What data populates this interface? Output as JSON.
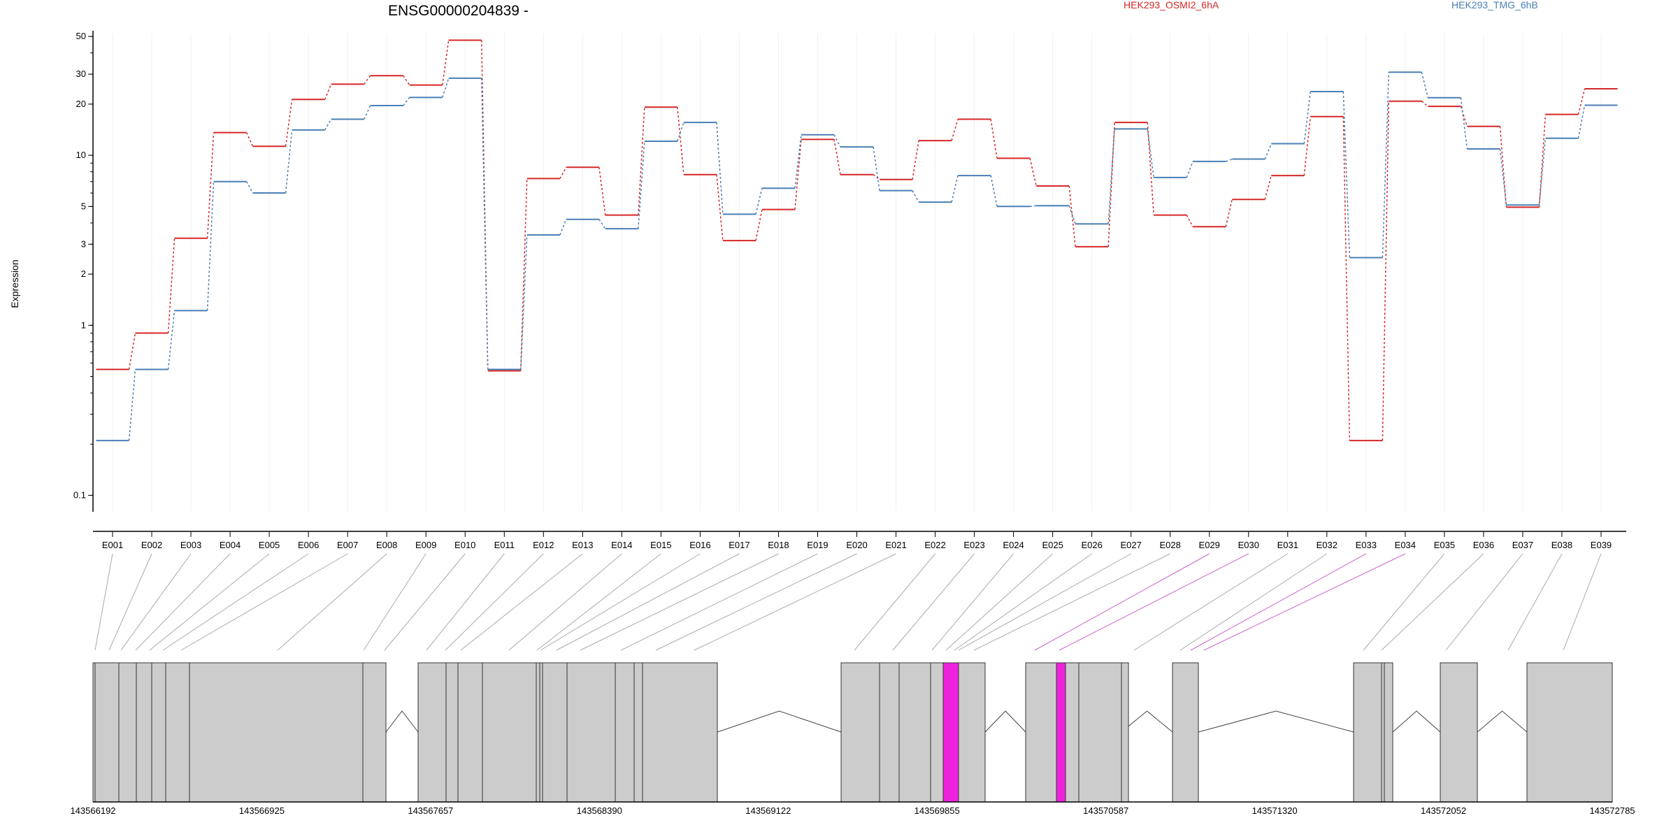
{
  "chart_data": {
    "type": "line",
    "title": "ENSG00000204839 -",
    "ylabel": "Expression",
    "yscale": "log",
    "ylim": [
      0.08,
      52
    ],
    "yticks": [
      0.1,
      1,
      2,
      3,
      5,
      10,
      20,
      30,
      50
    ],
    "ytick_labels": [
      "0.1",
      "1",
      "2",
      "3",
      "5",
      "10",
      "20",
      "30",
      "50"
    ],
    "grid": "vertical-faint",
    "legend_position": "top",
    "categories": [
      "E001",
      "E002",
      "E003",
      "E004",
      "E005",
      "E006",
      "E007",
      "E008",
      "E009",
      "E010",
      "E011",
      "E012",
      "E013",
      "E014",
      "E015",
      "E016",
      "E017",
      "E018",
      "E019",
      "E020",
      "E021",
      "E022",
      "E023",
      "E024",
      "E025",
      "E026",
      "E027",
      "E028",
      "E029",
      "E030",
      "E031",
      "E032",
      "E033",
      "E034",
      "E035",
      "E036",
      "E037",
      "E038",
      "E039"
    ],
    "series": [
      {
        "name": "HEK293_OSMI2_6hA",
        "color": "#d62728",
        "values": [
          0.55,
          0.9,
          3.25,
          13.6,
          11.3,
          21.3,
          26.2,
          29.4,
          25.9,
          47.5,
          0.54,
          7.3,
          8.5,
          4.45,
          19.2,
          7.7,
          3.15,
          4.8,
          12.4,
          7.7,
          7.2,
          12.2,
          16.3,
          9.6,
          6.6,
          2.9,
          15.6,
          4.45,
          3.8,
          5.5,
          7.6,
          16.9,
          0.21,
          20.8,
          19.4,
          14.8,
          4.95,
          17.4,
          24.6
        ]
      },
      {
        "name": "HEK293_TMG_6hB",
        "color": "#4a7fb5",
        "values": [
          0.21,
          0.55,
          1.22,
          7.0,
          6.0,
          14.1,
          16.3,
          19.6,
          21.9,
          28.4,
          0.55,
          3.4,
          4.2,
          3.7,
          12.1,
          15.6,
          4.5,
          6.4,
          13.2,
          11.2,
          6.2,
          5.3,
          7.6,
          5.0,
          5.05,
          3.95,
          14.3,
          7.4,
          9.2,
          9.5,
          11.7,
          23.7,
          2.5,
          30.8,
          21.8,
          10.9,
          5.1,
          12.6,
          19.7
        ]
      }
    ],
    "genomic_axis": {
      "tick_labels": [
        "143566192",
        "143566925",
        "143567657",
        "143568390",
        "143569122",
        "143569855",
        "143570587",
        "143571320",
        "143572052",
        "143572785"
      ]
    },
    "highlight_color": "#ee22dd",
    "exon_fill": "#cccccc"
  }
}
